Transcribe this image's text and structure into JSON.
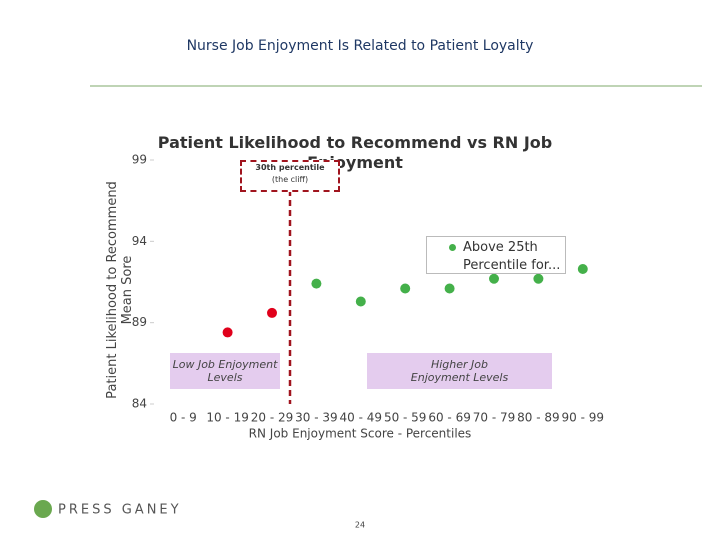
{
  "header": {
    "title": "Nurse Job Enjoyment Is Related to Patient Loyalty"
  },
  "chart_data": {
    "type": "scatter",
    "title": "Patient Likelihood to Recommend vs RN Job Enjoyment",
    "x_label": "RN Job Enjoyment Score - Percentiles",
    "y_label": "Patient Likelihood to Recommend Mean Sore",
    "categories": [
      "0 - 9",
      "10 - 19",
      "20 - 29",
      "30 - 39",
      "40 - 49",
      "50 - 59",
      "60 - 69",
      "70 - 79",
      "80 - 89",
      "90 - 99"
    ],
    "series": [
      {
        "name": "Above 25th Percentile for...",
        "color": "#44b04a",
        "values": [
          null,
          88.4,
          89.6,
          91.4,
          90.3,
          91.1,
          91.1,
          91.7,
          91.7,
          92.3
        ]
      }
    ],
    "point_colors": [
      null,
      "#e0001b",
      "#e0001b",
      "#44b04a",
      "#44b04a",
      "#44b04a",
      "#44b04a",
      "#44b04a",
      "#44b04a",
      "#44b04a"
    ],
    "ylim": [
      84,
      99
    ],
    "yticks": [
      84,
      89,
      94,
      99
    ],
    "grid": false,
    "annotations": {
      "cliff": "30th percentile",
      "cliff_note": "(the cliff)",
      "low": "Low Job Enjoyment Levels",
      "high": "Higher Job Enjoyment Levels"
    }
  },
  "footer": {
    "logo": "PRESS GANEY",
    "page": "24"
  }
}
